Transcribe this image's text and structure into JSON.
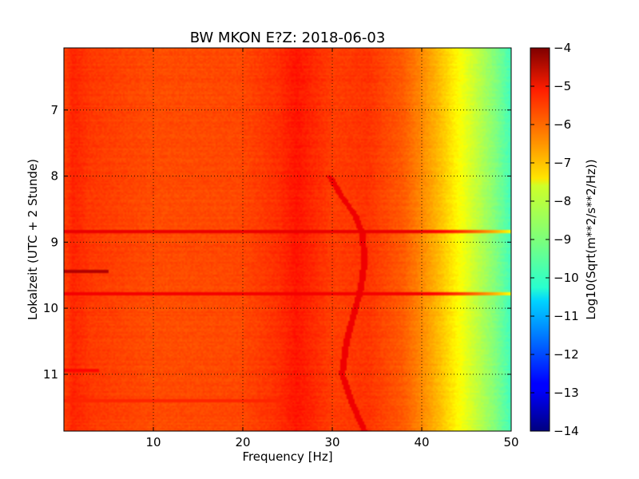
{
  "chart_data": {
    "type": "heatmap",
    "title": "BW MKON E?Z: 2018-06-03",
    "xlabel": "Frequency [Hz]",
    "ylabel": "Lokalzeit (UTC + 2 Stunde)",
    "xlim": [
      0,
      50
    ],
    "ylim": [
      6.06,
      11.86
    ],
    "y_axis_inverted": true,
    "xticks": [
      10,
      20,
      30,
      40,
      50
    ],
    "xtick_labels": [
      "10",
      "20",
      "30",
      "40",
      "50"
    ],
    "yticks": [
      7,
      8,
      9,
      10,
      11
    ],
    "ytick_labels": [
      "7",
      "8",
      "9",
      "10",
      "11"
    ],
    "grid": true,
    "colormap": "jet",
    "colorbar": {
      "label": "Log10(Sqrt(m**2/s**2/Hz))",
      "range": [
        -14,
        -4
      ],
      "ticks": [
        -4,
        -5,
        -6,
        -7,
        -8,
        -9,
        -10,
        -11,
        -12,
        -13,
        -14
      ],
      "tick_labels": [
        "−4",
        "−5",
        "−6",
        "−7",
        "−8",
        "−9",
        "−10",
        "−11",
        "−12",
        "−13",
        "−14"
      ]
    },
    "spectrum_profile": {
      "frequency_hz": [
        0,
        1,
        3,
        10,
        20,
        24,
        26,
        28,
        30,
        34,
        36,
        38,
        40,
        42,
        44,
        46,
        48,
        50
      ],
      "log10_amplitude": [
        -5.9,
        -5.6,
        -5.8,
        -6.0,
        -5.95,
        -5.7,
        -5.45,
        -5.65,
        -5.85,
        -5.75,
        -5.95,
        -6.15,
        -6.6,
        -7.1,
        -7.7,
        -8.3,
        -8.9,
        -9.6
      ]
    },
    "drifting_line": {
      "time_h": [
        8.0,
        8.3,
        8.6,
        8.9,
        9.3,
        9.7,
        10.1,
        10.5,
        11.0,
        11.4,
        11.86
      ],
      "frequency_hz": [
        29.7,
        31.0,
        32.6,
        33.4,
        33.6,
        33.2,
        32.4,
        31.6,
        31.1,
        32.1,
        33.6
      ],
      "log10_amplitude": -5.1
    },
    "broadband_bands": [
      {
        "time_h": 8.84,
        "fmin": 0,
        "fmax": 50,
        "log10_amplitude": -5.05
      },
      {
        "time_h": 9.78,
        "fmin": 0,
        "fmax": 50,
        "log10_amplitude": -5.15
      },
      {
        "time_h": 9.44,
        "fmin": 0,
        "fmax": 5,
        "log10_amplitude": -4.5
      },
      {
        "time_h": 10.94,
        "fmin": 0,
        "fmax": 4,
        "log10_amplitude": -5.3
      },
      {
        "time_h": 11.4,
        "fmin": 0,
        "fmax": 25,
        "log10_amplitude": -5.6
      }
    ]
  }
}
